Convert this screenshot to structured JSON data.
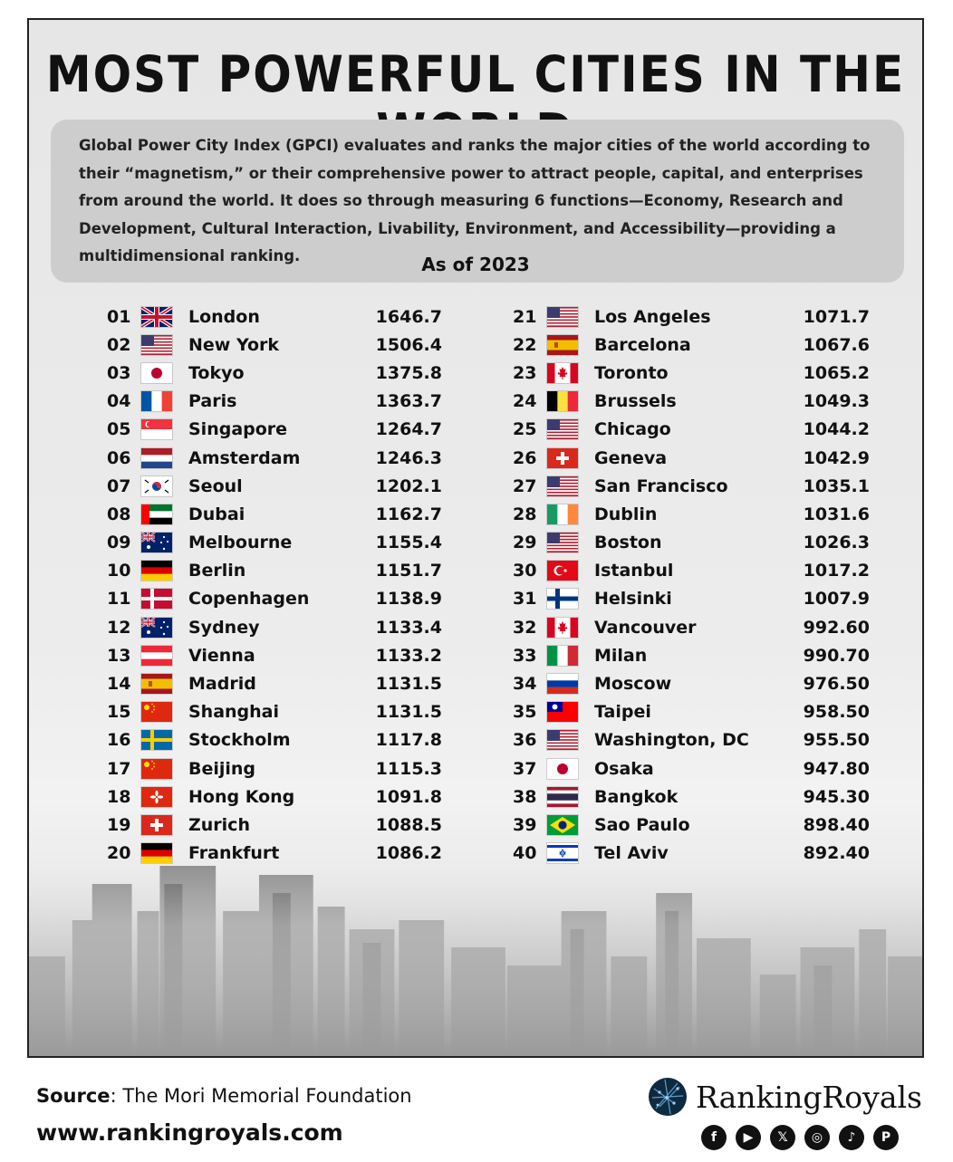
{
  "title": "MOST POWERFUL CITIES IN THE WORLD",
  "intro_lines": [
    "Global Power City Index (GPCI) evaluates and ranks the major cities of the world according to",
    "their “magnetism,” or their comprehensive power to attract people, capital, and enterprises",
    "from around the world. It does so through measuring 6 functions—Economy, Research and",
    "Development, Cultural Interaction, Livability, Environment, and Accessibility—providing a",
    "multidimensional ranking."
  ],
  "as_of": "As of 2023",
  "left_rows": [
    {
      "rank": "01",
      "city": "London",
      "score": "1646.7",
      "flag": "uk-flag-icon"
    },
    {
      "rank": "02",
      "city": "New York",
      "score": "1506.4",
      "flag": "us-flag-icon"
    },
    {
      "rank": "03",
      "city": "Tokyo",
      "score": "1375.8",
      "flag": "japan-flag-icon"
    },
    {
      "rank": "04",
      "city": "Paris",
      "score": "1363.7",
      "flag": "france-flag-icon"
    },
    {
      "rank": "05",
      "city": "Singapore",
      "score": "1264.7",
      "flag": "singapore-flag-icon"
    },
    {
      "rank": "06",
      "city": "Amsterdam",
      "score": "1246.3",
      "flag": "netherlands-flag-icon"
    },
    {
      "rank": "07",
      "city": "Seoul",
      "score": "1202.1",
      "flag": "south-korea-flag-icon"
    },
    {
      "rank": "08",
      "city": "Dubai",
      "score": "1162.7",
      "flag": "uae-flag-icon"
    },
    {
      "rank": "09",
      "city": "Melbourne",
      "score": "1155.4",
      "flag": "australia-flag-icon"
    },
    {
      "rank": "10",
      "city": "Berlin",
      "score": "1151.7",
      "flag": "germany-flag-icon"
    },
    {
      "rank": "11",
      "city": "Copenhagen",
      "score": "1138.9",
      "flag": "denmark-flag-icon"
    },
    {
      "rank": "12",
      "city": "Sydney",
      "score": "1133.4",
      "flag": "australia-flag-icon"
    },
    {
      "rank": "13",
      "city": "Vienna",
      "score": "1133.2",
      "flag": "austria-flag-icon"
    },
    {
      "rank": "14",
      "city": "Madrid",
      "score": "1131.5",
      "flag": "spain-flag-icon"
    },
    {
      "rank": "15",
      "city": "Shanghai",
      "score": "1131.5",
      "flag": "china-flag-icon"
    },
    {
      "rank": "16",
      "city": "Stockholm",
      "score": "1117.8",
      "flag": "sweden-flag-icon"
    },
    {
      "rank": "17",
      "city": "Beijing",
      "score": "1115.3",
      "flag": "china-flag-icon"
    },
    {
      "rank": "18",
      "city": "Hong Kong",
      "score": "1091.8",
      "flag": "hong-kong-flag-icon"
    },
    {
      "rank": "19",
      "city": "Zurich",
      "score": "1088.5",
      "flag": "switzerland-flag-icon"
    },
    {
      "rank": "20",
      "city": "Frankfurt",
      "score": "1086.2",
      "flag": "germany-flag-icon"
    }
  ],
  "right_rows": [
    {
      "rank": "21",
      "city": "Los Angeles",
      "score": "1071.7",
      "flag": "us-flag-icon"
    },
    {
      "rank": "22",
      "city": "Barcelona",
      "score": "1067.6",
      "flag": "spain-flag-icon"
    },
    {
      "rank": "23",
      "city": "Toronto",
      "score": "1065.2",
      "flag": "canada-flag-icon"
    },
    {
      "rank": "24",
      "city": "Brussels",
      "score": "1049.3",
      "flag": "belgium-flag-icon"
    },
    {
      "rank": "25",
      "city": "Chicago",
      "score": "1044.2",
      "flag": "us-flag-icon"
    },
    {
      "rank": "26",
      "city": "Geneva",
      "score": "1042.9",
      "flag": "switzerland-flag-icon"
    },
    {
      "rank": "27",
      "city": "San Francisco",
      "score": "1035.1",
      "flag": "us-flag-icon"
    },
    {
      "rank": "28",
      "city": "Dublin",
      "score": "1031.6",
      "flag": "ireland-flag-icon"
    },
    {
      "rank": "29",
      "city": "Boston",
      "score": "1026.3",
      "flag": "us-flag-icon"
    },
    {
      "rank": "30",
      "city": "Istanbul",
      "score": "1017.2",
      "flag": "turkey-flag-icon"
    },
    {
      "rank": "31",
      "city": "Helsinki",
      "score": "1007.9",
      "flag": "finland-flag-icon"
    },
    {
      "rank": "32",
      "city": "Vancouver",
      "score": "992.60",
      "flag": "canada-flag-icon"
    },
    {
      "rank": "33",
      "city": "Milan",
      "score": "990.70",
      "flag": "italy-flag-icon"
    },
    {
      "rank": "34",
      "city": "Moscow",
      "score": "976.50",
      "flag": "russia-flag-icon"
    },
    {
      "rank": "35",
      "city": "Taipei",
      "score": "958.50",
      "flag": "taiwan-flag-icon"
    },
    {
      "rank": "36",
      "city": "Washington, DC",
      "score": "955.50",
      "flag": "us-flag-icon"
    },
    {
      "rank": "37",
      "city": "Osaka",
      "score": "947.80",
      "flag": "japan-flag-icon"
    },
    {
      "rank": "38",
      "city": "Bangkok",
      "score": "945.30",
      "flag": "thailand-flag-icon"
    },
    {
      "rank": "39",
      "city": "Sao Paulo",
      "score": "898.40",
      "flag": "brazil-flag-icon"
    },
    {
      "rank": "40",
      "city": "Tel Aviv",
      "score": "892.40",
      "flag": "israel-flag-icon"
    }
  ],
  "footer": {
    "source_label": "Source",
    "source_text": ": The Mori Memorial Foundation",
    "url": "www.rankingroyals.com",
    "brand": "RankingRoyals",
    "social_icons": [
      "facebook-icon",
      "youtube-icon",
      "x-icon",
      "instagram-icon",
      "tiktok-icon",
      "pinterest-icon"
    ],
    "social_glyphs": [
      "f",
      "▶",
      "𝕏",
      "◎",
      "♪",
      "P"
    ]
  }
}
